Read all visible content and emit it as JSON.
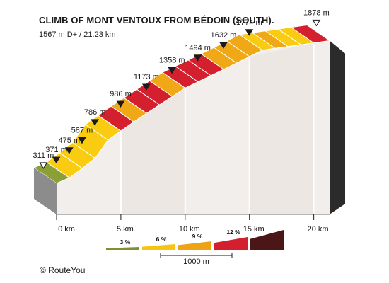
{
  "chart_data": {
    "type": "area",
    "title": "CLIMB OF MONT VENTOUX FROM BÉDOIN (SOUTH).",
    "subtitle": "1567 m D+ / 21.23 km",
    "x_unit": "km",
    "x_ticks": [
      "0 km",
      "5 km",
      "10 km",
      "15 km",
      "20 km"
    ],
    "x_tick_values": [
      0,
      5,
      10,
      15,
      20
    ],
    "xlim": [
      0,
      21.23
    ],
    "ylim": [
      311,
      1878
    ],
    "checkpoints": [
      {
        "km": 0,
        "elevation": 311,
        "label": "311 m",
        "marker": "start"
      },
      {
        "km": 1,
        "elevation": 371,
        "label": "371 m",
        "marker": "km"
      },
      {
        "km": 2,
        "elevation": 475,
        "label": "475 m",
        "marker": "km"
      },
      {
        "km": 3,
        "elevation": 587,
        "label": "587 m",
        "marker": "km"
      },
      {
        "km": 4,
        "elevation": 786,
        "label": "786 m",
        "marker": "km"
      },
      {
        "km": 6,
        "elevation": 986,
        "label": "986 m",
        "marker": "km"
      },
      {
        "km": 8,
        "elevation": 1173,
        "label": "1173 m",
        "marker": "km"
      },
      {
        "km": 10,
        "elevation": 1358,
        "label": "1358 m",
        "marker": "km"
      },
      {
        "km": 12,
        "elevation": 1494,
        "label": "1494 m",
        "marker": "km"
      },
      {
        "km": 14,
        "elevation": 1632,
        "label": "1632 m",
        "marker": "km"
      },
      {
        "km": 16,
        "elevation": 1774,
        "label": "1774 m",
        "marker": "km"
      },
      {
        "km": 21.23,
        "elevation": 1878,
        "label": "1878 m",
        "marker": "summit"
      }
    ],
    "segments": [
      {
        "from_km": 0,
        "to_km": 1,
        "grade_class": 0
      },
      {
        "from_km": 1,
        "to_km": 2,
        "grade_class": 1
      },
      {
        "from_km": 2,
        "to_km": 3,
        "grade_class": 1
      },
      {
        "from_km": 3,
        "to_km": 4,
        "grade_class": 1
      },
      {
        "from_km": 4,
        "to_km": 5,
        "grade_class": 1
      },
      {
        "from_km": 5,
        "to_km": 6,
        "grade_class": 3
      },
      {
        "from_km": 6,
        "to_km": 7,
        "grade_class": 2
      },
      {
        "from_km": 7,
        "to_km": 8,
        "grade_class": 3
      },
      {
        "from_km": 8,
        "to_km": 9,
        "grade_class": 3
      },
      {
        "from_km": 9,
        "to_km": 10,
        "grade_class": 2
      },
      {
        "from_km": 10,
        "to_km": 11,
        "grade_class": 3
      },
      {
        "from_km": 11,
        "to_km": 12,
        "grade_class": 3
      },
      {
        "from_km": 12,
        "to_km": 13,
        "grade_class": 3
      },
      {
        "from_km": 13,
        "to_km": 14,
        "grade_class": 2
      },
      {
        "from_km": 14,
        "to_km": 15,
        "grade_class": 2
      },
      {
        "from_km": 15,
        "to_km": 16,
        "grade_class": 2
      },
      {
        "from_km": 16,
        "to_km": 17,
        "grade_class": 1
      },
      {
        "from_km": 17,
        "to_km": 18,
        "grade_class": 2
      },
      {
        "from_km": 18,
        "to_km": 19,
        "grade_class": 1
      },
      {
        "from_km": 19,
        "to_km": 20,
        "grade_class": 1
      },
      {
        "from_km": 20,
        "to_km": 21.23,
        "grade_class": 3
      }
    ],
    "legend": {
      "items": [
        {
          "label": "3 %",
          "color": "#7d9131"
        },
        {
          "label": "6 %",
          "color": "#f5c511"
        },
        {
          "label": "9 %",
          "color": "#eea315"
        },
        {
          "label": "12 %",
          "color": "#d4202e"
        },
        {
          "label": "",
          "color": "#4b1616"
        }
      ],
      "scale_label": "1000 m"
    },
    "colors": {
      "grade_0": "#8aa036",
      "grade_1": "#f9cc12",
      "grade_2": "#f0a817",
      "grade_3": "#d4202e",
      "side": "#f1eeec",
      "side_band": "#ede7e4",
      "wall": "#2b2b2b",
      "slab_edge": "#8c8c8c"
    }
  },
  "footer": {
    "copyright": "© RouteYou"
  }
}
